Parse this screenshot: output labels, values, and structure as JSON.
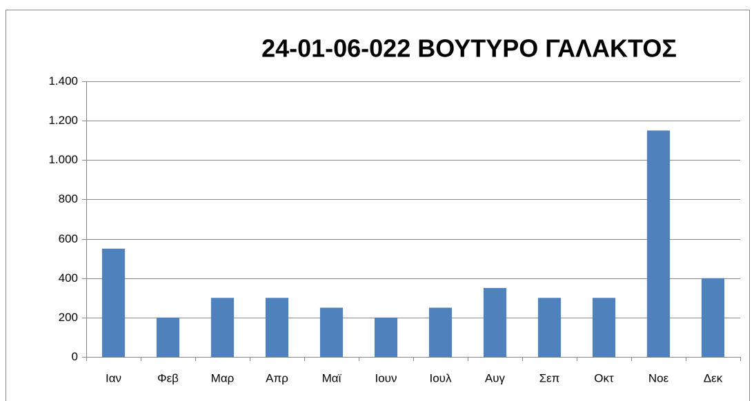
{
  "chart_data": {
    "type": "bar",
    "title": "24-01-06-022 ΒΟΥΤΥΡΟ ΓΑΛΑΚΤΟΣ",
    "categories": [
      "Ιαν",
      "Φεβ",
      "Μαρ",
      "Απρ",
      "Μαϊ",
      "Ιουν",
      "Ιουλ",
      "Αυγ",
      "Σεπ",
      "Οκτ",
      "Νοε",
      "Δεκ"
    ],
    "values": [
      550,
      200,
      300,
      300,
      250,
      200,
      250,
      350,
      300,
      300,
      1150,
      400
    ],
    "color": "#4f81bd",
    "ylim": [
      0,
      1400
    ],
    "yticks": [
      0,
      200,
      400,
      600,
      800,
      {
        "value": 1000,
        "label": "1.000"
      },
      {
        "value": 1200,
        "label": "1.200"
      },
      {
        "value": 1400,
        "label": "1.400"
      }
    ],
    "grid": true
  }
}
